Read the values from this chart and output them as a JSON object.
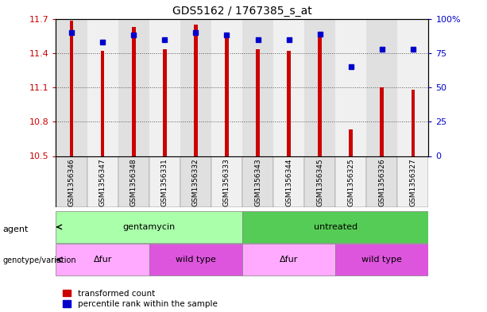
{
  "title": "GDS5162 / 1767385_s_at",
  "samples": [
    "GSM1356346",
    "GSM1356347",
    "GSM1356348",
    "GSM1356331",
    "GSM1356332",
    "GSM1356333",
    "GSM1356343",
    "GSM1356344",
    "GSM1356345",
    "GSM1356325",
    "GSM1356326",
    "GSM1356327"
  ],
  "transformed_counts": [
    11.68,
    11.42,
    11.63,
    11.43,
    11.65,
    11.57,
    11.43,
    11.42,
    11.58,
    10.73,
    11.1,
    11.08
  ],
  "percentile_ranks": [
    90,
    83,
    88,
    85,
    90,
    88,
    85,
    85,
    89,
    65,
    78,
    78
  ],
  "y_min": 10.5,
  "y_max": 11.7,
  "y_ticks": [
    10.5,
    10.8,
    11.1,
    11.4,
    11.7
  ],
  "right_y_ticks": [
    0,
    25,
    50,
    75,
    100
  ],
  "bar_color": "#cc0000",
  "dot_color": "#0000cc",
  "col_colors": [
    "#e0e0e0",
    "#f0f0f0"
  ],
  "agent_gentamycin_color": "#aaffaa",
  "agent_untreated_color": "#55cc55",
  "geno_deltafur_color": "#ffaaff",
  "geno_wildtype_color": "#dd55dd",
  "bg_color": "#ffffff",
  "grid_color": "#555555",
  "tick_color_left": "#cc0000",
  "tick_color_right": "#0000cc",
  "legend_items": [
    {
      "label": "transformed count",
      "color": "#cc0000"
    },
    {
      "label": "percentile rank within the sample",
      "color": "#0000cc"
    }
  ]
}
